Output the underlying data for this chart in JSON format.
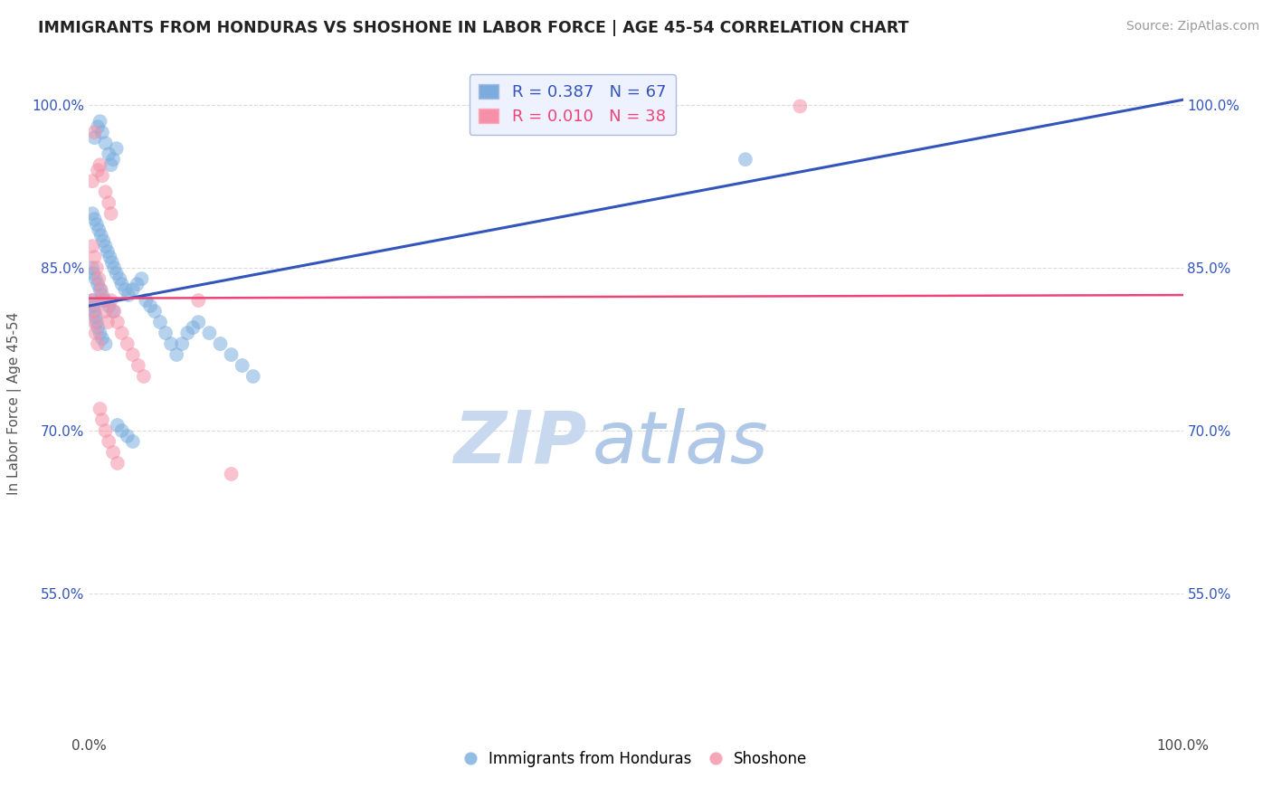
{
  "title": "IMMIGRANTS FROM HONDURAS VS SHOSHONE IN LABOR FORCE | AGE 45-54 CORRELATION CHART",
  "source": "Source: ZipAtlas.com",
  "ylabel": "In Labor Force | Age 45-54",
  "xlim": [
    0.0,
    1.0
  ],
  "ylim": [
    0.42,
    1.03
  ],
  "yticks": [
    0.55,
    0.7,
    0.85,
    1.0
  ],
  "ytick_labels": [
    "55.0%",
    "70.0%",
    "85.0%",
    "100.0%"
  ],
  "xtick_labels": [
    "0.0%",
    "100.0%"
  ],
  "xticks": [
    0.0,
    1.0
  ],
  "blue_R": 0.387,
  "blue_N": 67,
  "pink_R": 0.01,
  "pink_N": 38,
  "background_color": "#ffffff",
  "grid_color": "#cccccc",
  "blue_color": "#7aadde",
  "pink_color": "#f590a8",
  "blue_line_color": "#3355bb",
  "pink_line_color": "#ee4477",
  "legend_box_color": "#eef2ff",
  "blue_line_x0": 0.0,
  "blue_line_y0": 0.815,
  "blue_line_x1": 1.0,
  "blue_line_y1": 1.005,
  "pink_line_x0": 0.0,
  "pink_line_y0": 0.822,
  "pink_line_x1": 1.0,
  "pink_line_y1": 0.825,
  "blue_scatter_x": [
    0.005,
    0.008,
    0.01,
    0.012,
    0.015,
    0.018,
    0.02,
    0.022,
    0.025,
    0.003,
    0.005,
    0.007,
    0.009,
    0.011,
    0.013,
    0.015,
    0.017,
    0.019,
    0.021,
    0.023,
    0.025,
    0.028,
    0.03,
    0.033,
    0.036,
    0.04,
    0.044,
    0.048,
    0.052,
    0.056,
    0.06,
    0.065,
    0.07,
    0.075,
    0.08,
    0.085,
    0.09,
    0.095,
    0.1,
    0.11,
    0.12,
    0.13,
    0.14,
    0.15,
    0.003,
    0.004,
    0.005,
    0.006,
    0.007,
    0.008,
    0.01,
    0.012,
    0.015,
    0.003,
    0.004,
    0.006,
    0.008,
    0.01,
    0.012,
    0.015,
    0.018,
    0.022,
    0.026,
    0.03,
    0.035,
    0.04,
    0.6
  ],
  "blue_scatter_y": [
    0.97,
    0.98,
    0.985,
    0.975,
    0.965,
    0.955,
    0.945,
    0.95,
    0.96,
    0.9,
    0.895,
    0.89,
    0.885,
    0.88,
    0.875,
    0.87,
    0.865,
    0.86,
    0.855,
    0.85,
    0.845,
    0.84,
    0.835,
    0.83,
    0.825,
    0.83,
    0.835,
    0.84,
    0.82,
    0.815,
    0.81,
    0.8,
    0.79,
    0.78,
    0.77,
    0.78,
    0.79,
    0.795,
    0.8,
    0.79,
    0.78,
    0.77,
    0.76,
    0.75,
    0.82,
    0.815,
    0.81,
    0.805,
    0.8,
    0.795,
    0.79,
    0.785,
    0.78,
    0.85,
    0.845,
    0.84,
    0.835,
    0.83,
    0.825,
    0.82,
    0.815,
    0.81,
    0.705,
    0.7,
    0.695,
    0.69,
    0.95
  ],
  "pink_scatter_x": [
    0.003,
    0.005,
    0.008,
    0.01,
    0.012,
    0.015,
    0.018,
    0.02,
    0.003,
    0.005,
    0.007,
    0.009,
    0.011,
    0.013,
    0.015,
    0.017,
    0.02,
    0.023,
    0.026,
    0.03,
    0.035,
    0.04,
    0.045,
    0.05,
    0.003,
    0.004,
    0.005,
    0.006,
    0.008,
    0.01,
    0.012,
    0.015,
    0.018,
    0.022,
    0.026,
    0.1,
    0.13,
    0.65
  ],
  "pink_scatter_y": [
    0.93,
    0.975,
    0.94,
    0.945,
    0.935,
    0.92,
    0.91,
    0.9,
    0.87,
    0.86,
    0.85,
    0.84,
    0.83,
    0.82,
    0.81,
    0.8,
    0.82,
    0.81,
    0.8,
    0.79,
    0.78,
    0.77,
    0.76,
    0.75,
    0.82,
    0.81,
    0.8,
    0.79,
    0.78,
    0.72,
    0.71,
    0.7,
    0.69,
    0.68,
    0.67,
    0.82,
    0.66,
    0.999
  ],
  "watermark_part1": "ZIP",
  "watermark_part2": "atlas",
  "watermark_color1": "#c8d8ee",
  "watermark_color2": "#b0c8e8"
}
